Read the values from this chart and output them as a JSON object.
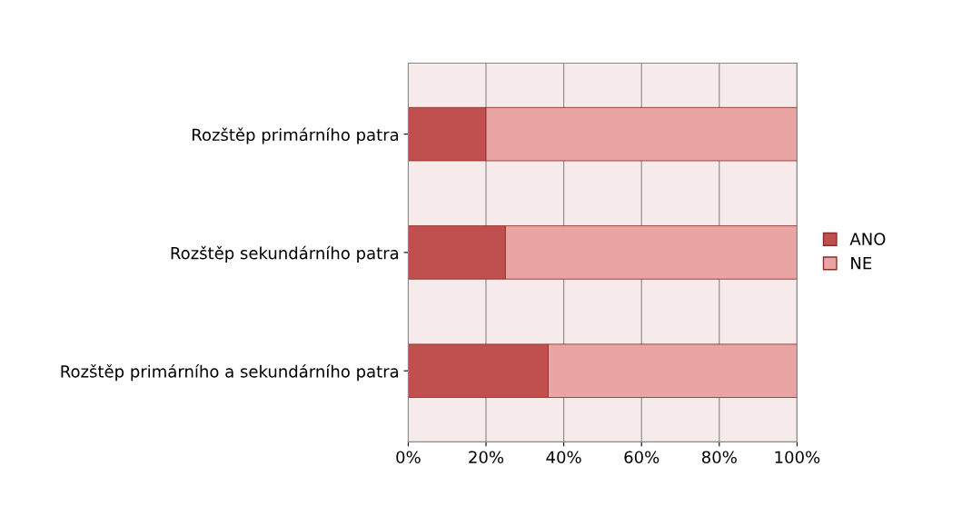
{
  "chart_data": {
    "type": "bar",
    "orientation": "horizontal",
    "stacked": true,
    "categories": [
      "Rozštěp primárního patra",
      "Rozštěp sekundárního patra",
      "Rozštěp primárního a sekundárního patra"
    ],
    "series": [
      {
        "name": "ANO",
        "color": "#c0504d",
        "values": [
          20,
          25,
          36
        ]
      },
      {
        "name": "NE",
        "color": "#e8a5a4",
        "values": [
          80,
          75,
          64
        ]
      }
    ],
    "xlim": [
      0,
      100
    ],
    "xticks": [
      {
        "value": 0,
        "label": "0%"
      },
      {
        "value": 20,
        "label": "20%"
      },
      {
        "value": 40,
        "label": "40%"
      },
      {
        "value": 60,
        "label": "60%"
      },
      {
        "value": 80,
        "label": "80%"
      },
      {
        "value": 100,
        "label": "100%"
      }
    ],
    "grid": "x",
    "legend": "right"
  }
}
